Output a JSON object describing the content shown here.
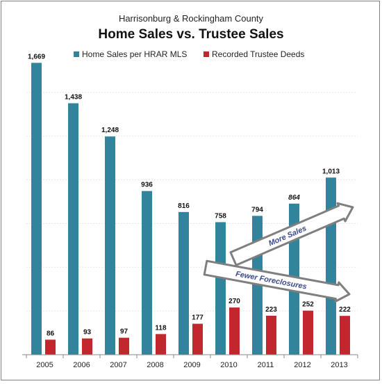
{
  "chart_data": {
    "type": "bar",
    "subtitle": "Harrisonburg & Rockingham County",
    "title": "Home Sales vs. Trustee Sales",
    "categories": [
      "2005",
      "2006",
      "2007",
      "2008",
      "2009",
      "2010",
      "2011",
      "2012",
      "2013"
    ],
    "series": [
      {
        "name": "Home Sales per HRAR MLS",
        "values": [
          1669,
          1438,
          1248,
          936,
          816,
          758,
          794,
          864,
          1013
        ],
        "color": "#31849b"
      },
      {
        "name": "Recorded Trustee Deeds",
        "values": [
          86,
          93,
          97,
          118,
          177,
          270,
          223,
          252,
          222
        ],
        "color": "#c0282d"
      }
    ],
    "value_labels": [
      [
        "1,669",
        "1,438",
        "1,248",
        "936",
        "816",
        "758",
        "794",
        "864",
        "1,013"
      ],
      [
        "86",
        "93",
        "97",
        "118",
        "177",
        "270",
        "223",
        "252",
        "222"
      ]
    ],
    "ylim": [
      0,
      1750
    ],
    "grid": true,
    "legend_position": "top",
    "annotations": [
      "More Sales",
      "Fewer Foreclosures"
    ],
    "arrow_color": "#7f7f7f",
    "annotation_text_color": "#3b4a8c"
  }
}
